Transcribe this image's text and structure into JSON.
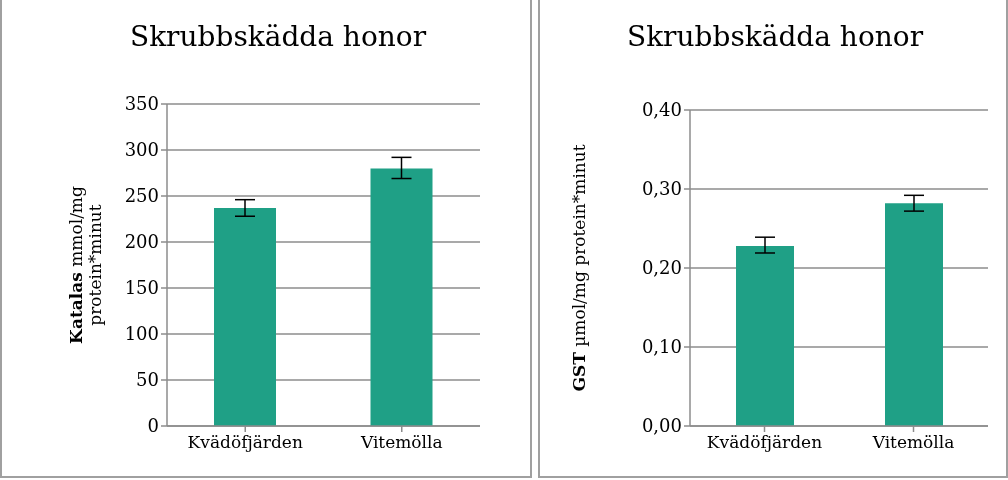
{
  "chart_data": [
    {
      "type": "bar",
      "title": "Skrubbskädda honor",
      "ylabel": "Katalas mmol/mg protein*minut",
      "categories": [
        "Kvädöfjärden",
        "Vitemölla"
      ],
      "values": [
        237,
        280
      ],
      "errors": [
        [
          228,
          246
        ],
        [
          269,
          292
        ]
      ],
      "color": "#1fa086",
      "ylim": [
        0,
        350
      ],
      "yticks": [
        0,
        50,
        100,
        150,
        200,
        250,
        300,
        350
      ],
      "grid": "y",
      "legend": false
    },
    {
      "type": "bar",
      "title": "Skrubbskädda honor",
      "ylabel": "GST µmol/mg protein*minut",
      "categories": [
        "Kvädöfjärden",
        "Vitemölla"
      ],
      "values": [
        0.228,
        0.282
      ],
      "errors": [
        [
          0.219,
          0.239
        ],
        [
          0.272,
          0.292
        ]
      ],
      "color": "#1fa086",
      "ylim": [
        0,
        0.4
      ],
      "yticks": [
        {
          "value": 0,
          "label": "0,00"
        },
        {
          "value": 0.1,
          "label": "0,10"
        },
        {
          "value": 0.2,
          "label": "0,20"
        },
        {
          "value": 0.3,
          "label": "0,30"
        },
        {
          "value": 0.4,
          "label": "0,40"
        }
      ],
      "grid": "y",
      "legend": false
    }
  ]
}
